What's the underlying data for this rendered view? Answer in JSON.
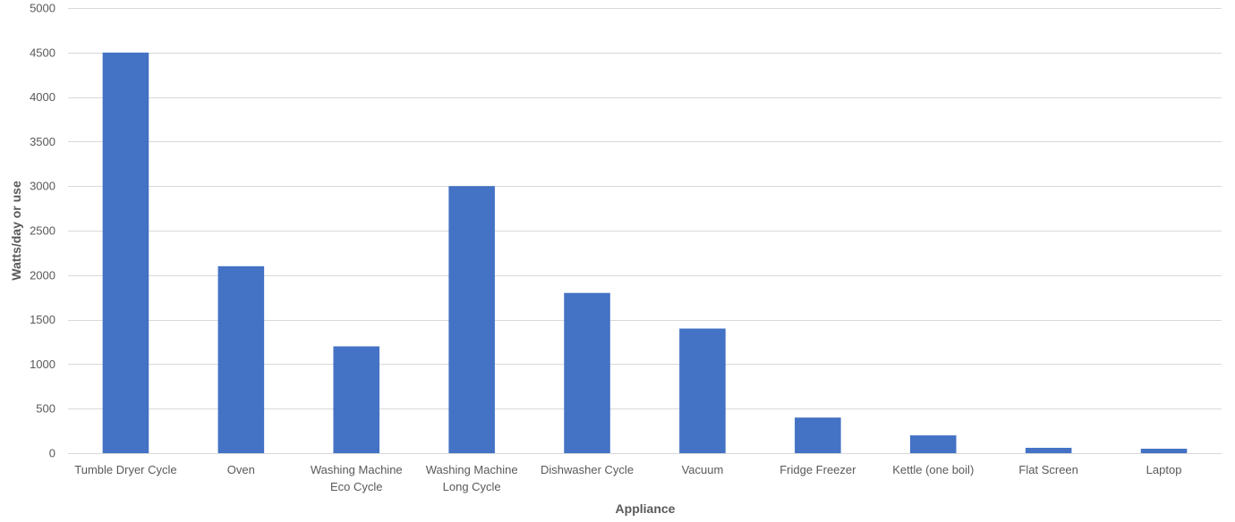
{
  "chart_data": {
    "type": "bar",
    "title": "",
    "xlabel": "Appliance",
    "ylabel": "Watts/day or use",
    "ylim": [
      0,
      5000
    ],
    "yticks": [
      0,
      500,
      1000,
      1500,
      2000,
      2500,
      3000,
      3500,
      4000,
      4500,
      5000
    ],
    "grid": true,
    "legend": "none",
    "bar_color": "#4472C4",
    "categories": [
      [
        "Tumble Dryer Cycle"
      ],
      [
        "Oven"
      ],
      [
        "Washing Machine",
        "Eco Cycle"
      ],
      [
        "Washing Machine",
        "Long Cycle"
      ],
      [
        "Dishwasher Cycle"
      ],
      [
        "Vacuum"
      ],
      [
        "Fridge Freezer"
      ],
      [
        "Kettle (one boil)"
      ],
      [
        "Flat Screen"
      ],
      [
        "Laptop"
      ]
    ],
    "values": [
      4500,
      2100,
      1200,
      3000,
      1800,
      1400,
      400,
      200,
      60,
      50
    ]
  }
}
